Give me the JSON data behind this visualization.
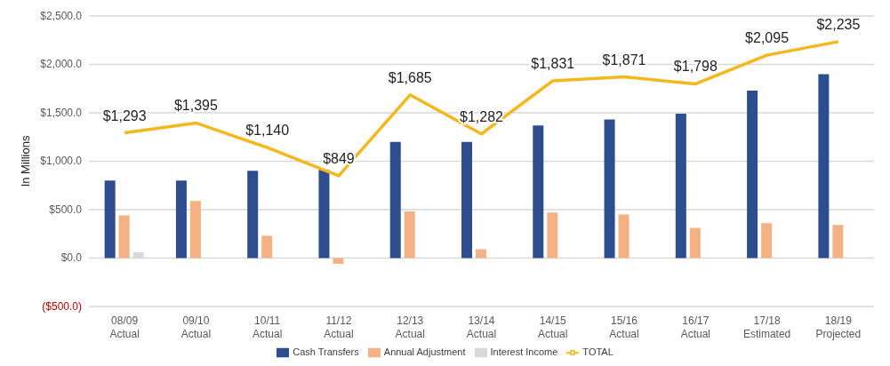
{
  "chart_data": {
    "type": "bar",
    "ylabel": "In Millions",
    "categories": [
      "08/09\nActual",
      "09/10\nActual",
      "10/11\nActual",
      "11/12\nActual",
      "12/13\nActual",
      "13/14\nActual",
      "14/15\nActual",
      "15/16\nActual",
      "16/17\nActual",
      "17/18\nEstimated",
      "18/19\nProjected"
    ],
    "series": [
      {
        "name": "Cash Transfers",
        "color": "#2e4d8f",
        "values": [
          800,
          800,
          900,
          910,
          1200,
          1200,
          1370,
          1430,
          1490,
          1730,
          1900
        ]
      },
      {
        "name": "Annual Adjustment",
        "color": "#f4b183",
        "values": [
          440,
          590,
          230,
          -60,
          480,
          90,
          470,
          450,
          310,
          360,
          340
        ]
      },
      {
        "name": "Interest Income",
        "color": "#d9d9d9",
        "values": [
          60,
          null,
          null,
          0,
          0,
          0,
          0,
          0,
          0,
          0,
          0
        ]
      },
      {
        "name": "TOTAL",
        "type": "line",
        "color": "#f2b81e",
        "values": [
          1293,
          1395,
          1140,
          849,
          1685,
          1282,
          1831,
          1871,
          1798,
          2095,
          2235
        ],
        "value_labels": [
          "$1,293",
          "$1,395",
          "$1,140",
          "$849",
          "$1,685",
          "$1,282",
          "$1,831",
          "$1,871",
          "$1,798",
          "$2,095",
          "$2,235"
        ]
      }
    ],
    "ylim": [
      -500,
      2500
    ],
    "yticks": [
      {
        "value": -500,
        "label": "($500.0)"
      },
      {
        "value": 0,
        "label": "$0.0"
      },
      {
        "value": 500,
        "label": "$500.0"
      },
      {
        "value": 1000,
        "label": "$1,000.0"
      },
      {
        "value": 1500,
        "label": "$1,500.0"
      },
      {
        "value": 2000,
        "label": "$2,000.0"
      },
      {
        "value": 2500,
        "label": "$2,500.0"
      }
    ],
    "grid": "y",
    "legend": "bottom",
    "marker": "none",
    "line_style": "solid"
  }
}
